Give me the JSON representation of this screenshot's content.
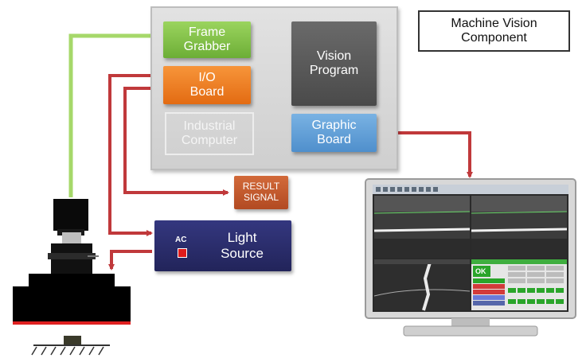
{
  "title": "Machine Vision\nComponent",
  "blocks": {
    "frame_grabber": "Frame\nGrabber",
    "io_board": "I/O\nBoard",
    "vision_program": "Vision\nProgram",
    "industrial_computer": "Industrial\nComputer",
    "graphic_board": "Graphic\nBoard",
    "result_signal": "RESULT\nSIGNAL",
    "light_source": "Light\nSource",
    "ac_label": "AC"
  },
  "monitor": {
    "ok_label": "OK"
  },
  "colors": {
    "frame_grabber": "#7dc142",
    "io_board": "#f07c1e",
    "vision_program": "#5a5a5a",
    "graphic_board": "#5b9bd5",
    "result_signal": "#c55a2c",
    "light_source": "#2b2d6e",
    "arrow_red": "#c0393b",
    "arrow_green": "#a6d86a"
  }
}
